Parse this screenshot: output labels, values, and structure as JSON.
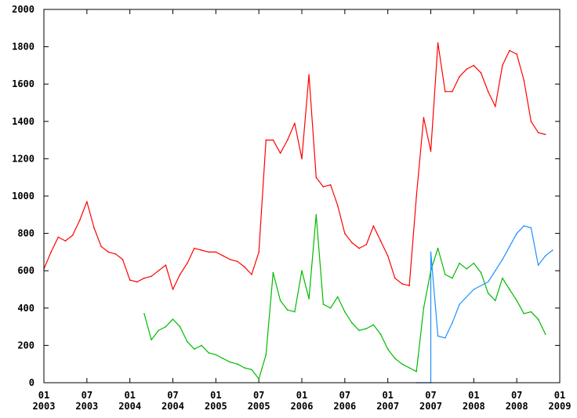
{
  "chart_data": {
    "type": "line",
    "title": "",
    "xlabel": "",
    "ylabel": "",
    "ylim": [
      0,
      2000
    ],
    "xlim": [
      "2003-01",
      "2009-01"
    ],
    "grid": false,
    "y_ticks": [
      "0",
      "200",
      "400",
      "600",
      "800",
      "1000",
      "1200",
      "1400",
      "1600",
      "1800",
      "2000"
    ],
    "x_ticks": [
      {
        "top": "01",
        "bottom": "2003"
      },
      {
        "top": "07",
        "bottom": "2003"
      },
      {
        "top": "01",
        "bottom": "2004"
      },
      {
        "top": "07",
        "bottom": "2004"
      },
      {
        "top": "01",
        "bottom": "2005"
      },
      {
        "top": "07",
        "bottom": "2005"
      },
      {
        "top": "01",
        "bottom": "2006"
      },
      {
        "top": "07",
        "bottom": "2006"
      },
      {
        "top": "01",
        "bottom": "2007"
      },
      {
        "top": "07",
        "bottom": "2007"
      },
      {
        "top": "01",
        "bottom": "2008"
      },
      {
        "top": "07",
        "bottom": "2008"
      },
      {
        "top": "01",
        "bottom": "2009"
      }
    ],
    "series": [
      {
        "color": "#ff0000",
        "points": [
          [
            "2003-01",
            610
          ],
          [
            "2003-02",
            700
          ],
          [
            "2003-03",
            780
          ],
          [
            "2003-04",
            760
          ],
          [
            "2003-05",
            790
          ],
          [
            "2003-06",
            870
          ],
          [
            "2003-07",
            970
          ],
          [
            "2003-08",
            830
          ],
          [
            "2003-09",
            730
          ],
          [
            "2003-10",
            700
          ],
          [
            "2003-11",
            690
          ],
          [
            "2003-12",
            660
          ],
          [
            "2004-01",
            550
          ],
          [
            "2004-02",
            540
          ],
          [
            "2004-03",
            560
          ],
          [
            "2004-04",
            570
          ],
          [
            "2004-05",
            600
          ],
          [
            "2004-06",
            630
          ],
          [
            "2004-07",
            500
          ],
          [
            "2004-08",
            580
          ],
          [
            "2004-09",
            640
          ],
          [
            "2004-10",
            720
          ],
          [
            "2004-11",
            710
          ],
          [
            "2004-12",
            700
          ],
          [
            "2005-01",
            700
          ],
          [
            "2005-02",
            680
          ],
          [
            "2005-03",
            660
          ],
          [
            "2005-04",
            650
          ],
          [
            "2005-05",
            620
          ],
          [
            "2005-06",
            580
          ],
          [
            "2005-07",
            700
          ],
          [
            "2005-08",
            1300
          ],
          [
            "2005-09",
            1300
          ],
          [
            "2005-10",
            1230
          ],
          [
            "2005-11",
            1300
          ],
          [
            "2005-12",
            1390
          ],
          [
            "2006-01",
            1200
          ],
          [
            "2006-02",
            1650
          ],
          [
            "2006-03",
            1100
          ],
          [
            "2006-04",
            1050
          ],
          [
            "2006-05",
            1060
          ],
          [
            "2006-06",
            950
          ],
          [
            "2006-07",
            800
          ],
          [
            "2006-08",
            750
          ],
          [
            "2006-09",
            720
          ],
          [
            "2006-10",
            740
          ],
          [
            "2006-11",
            840
          ],
          [
            "2006-12",
            760
          ],
          [
            "2007-01",
            680
          ],
          [
            "2007-02",
            560
          ],
          [
            "2007-03",
            530
          ],
          [
            "2007-04",
            520
          ],
          [
            "2007-05",
            1000
          ],
          [
            "2007-06",
            1420
          ],
          [
            "2007-07",
            1240
          ],
          [
            "2007-08",
            1820
          ],
          [
            "2007-09",
            1560
          ],
          [
            "2007-10",
            1560
          ],
          [
            "2007-11",
            1640
          ],
          [
            "2007-12",
            1680
          ],
          [
            "2008-01",
            1700
          ],
          [
            "2008-02",
            1660
          ],
          [
            "2008-03",
            1560
          ],
          [
            "2008-04",
            1480
          ],
          [
            "2008-05",
            1700
          ],
          [
            "2008-06",
            1780
          ],
          [
            "2008-07",
            1760
          ],
          [
            "2008-08",
            1620
          ],
          [
            "2008-09",
            1400
          ],
          [
            "2008-10",
            1340
          ],
          [
            "2008-11",
            1330
          ]
        ]
      },
      {
        "color": "#00bb00",
        "points": [
          [
            "2004-03",
            370
          ],
          [
            "2004-04",
            230
          ],
          [
            "2004-05",
            280
          ],
          [
            "2004-06",
            300
          ],
          [
            "2004-07",
            340
          ],
          [
            "2004-08",
            300
          ],
          [
            "2004-09",
            220
          ],
          [
            "2004-10",
            180
          ],
          [
            "2004-11",
            200
          ],
          [
            "2004-12",
            160
          ],
          [
            "2005-01",
            150
          ],
          [
            "2005-02",
            130
          ],
          [
            "2005-03",
            110
          ],
          [
            "2005-04",
            100
          ],
          [
            "2005-05",
            80
          ],
          [
            "2005-06",
            70
          ],
          [
            "2005-07",
            20
          ],
          [
            "2005-08",
            150
          ],
          [
            "2005-09",
            590
          ],
          [
            "2005-10",
            440
          ],
          [
            "2005-11",
            390
          ],
          [
            "2005-12",
            380
          ],
          [
            "2006-01",
            600
          ],
          [
            "2006-02",
            450
          ],
          [
            "2006-03",
            900
          ],
          [
            "2006-04",
            420
          ],
          [
            "2006-05",
            400
          ],
          [
            "2006-06",
            460
          ],
          [
            "2006-07",
            380
          ],
          [
            "2006-08",
            320
          ],
          [
            "2006-09",
            280
          ],
          [
            "2006-10",
            290
          ],
          [
            "2006-11",
            310
          ],
          [
            "2006-12",
            260
          ],
          [
            "2007-01",
            180
          ],
          [
            "2007-02",
            130
          ],
          [
            "2007-03",
            100
          ],
          [
            "2007-04",
            80
          ],
          [
            "2007-05",
            60
          ],
          [
            "2007-06",
            400
          ],
          [
            "2007-07",
            600
          ],
          [
            "2007-08",
            720
          ],
          [
            "2007-09",
            580
          ],
          [
            "2007-10",
            560
          ],
          [
            "2007-11",
            640
          ],
          [
            "2007-12",
            610
          ],
          [
            "2008-01",
            640
          ],
          [
            "2008-02",
            590
          ],
          [
            "2008-03",
            480
          ],
          [
            "2008-04",
            440
          ],
          [
            "2008-05",
            560
          ],
          [
            "2008-06",
            500
          ],
          [
            "2008-07",
            440
          ],
          [
            "2008-08",
            370
          ],
          [
            "2008-09",
            380
          ],
          [
            "2008-10",
            340
          ],
          [
            "2008-11",
            260
          ]
        ]
      },
      {
        "color": "#1e90ff",
        "points": [
          [
            "2007-05",
            0
          ],
          [
            "2007-07",
            0
          ],
          [
            "2007-07",
            700
          ],
          [
            "2007-08",
            250
          ],
          [
            "2007-09",
            240
          ],
          [
            "2007-10",
            320
          ],
          [
            "2007-11",
            420
          ],
          [
            "2008-01",
            500
          ],
          [
            "2008-03",
            540
          ],
          [
            "2008-04",
            600
          ],
          [
            "2008-05",
            660
          ],
          [
            "2008-06",
            730
          ],
          [
            "2008-07",
            800
          ],
          [
            "2008-08",
            840
          ],
          [
            "2008-09",
            830
          ],
          [
            "2008-10",
            630
          ],
          [
            "2008-11",
            680
          ],
          [
            "2008-12",
            710
          ]
        ]
      }
    ]
  }
}
